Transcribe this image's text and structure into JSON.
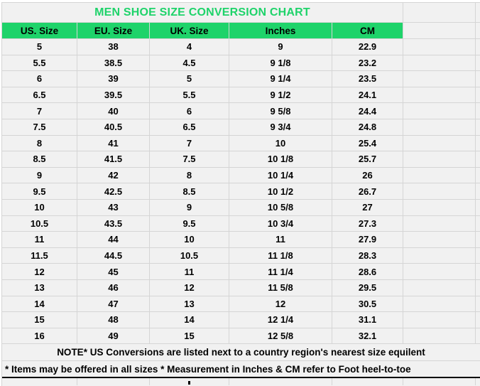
{
  "title": "MEN SHOE SIZE CONVERSION CHART",
  "table": {
    "columns": [
      "US. Size",
      "EU. Size",
      "UK. Size",
      "Inches",
      "CM"
    ],
    "rows": [
      {
        "us": "5",
        "eu": "38",
        "uk": "4",
        "inches": "9",
        "cm": "22.9"
      },
      {
        "us": "5.5",
        "eu": "38.5",
        "uk": "4.5",
        "inches": "9 1/8",
        "cm": "23.2"
      },
      {
        "us": "6",
        "eu": "39",
        "uk": "5",
        "inches": "9 1/4",
        "cm": "23.5"
      },
      {
        "us": "6.5",
        "eu": "39.5",
        "uk": "5.5",
        "inches": "9 1/2",
        "cm": "24.1"
      },
      {
        "us": "7",
        "eu": "40",
        "uk": "6",
        "inches": "9 5/8",
        "cm": "24.4"
      },
      {
        "us": "7.5",
        "eu": "40.5",
        "uk": "6.5",
        "inches": "9 3/4",
        "cm": "24.8"
      },
      {
        "us": "8",
        "eu": "41",
        "uk": "7",
        "inches": "10",
        "cm": "25.4"
      },
      {
        "us": "8.5",
        "eu": "41.5",
        "uk": "7.5",
        "inches": "10 1/8",
        "cm": "25.7"
      },
      {
        "us": "9",
        "eu": "42",
        "uk": "8",
        "inches": "10 1/4",
        "cm": "26"
      },
      {
        "us": "9.5",
        "eu": "42.5",
        "uk": "8.5",
        "inches": "10 1/2",
        "cm": "26.7"
      },
      {
        "us": "10",
        "eu": "43",
        "uk": "9",
        "inches": "10 5/8",
        "cm": "27"
      },
      {
        "us": "10.5",
        "eu": "43.5",
        "uk": "9.5",
        "inches": "10 3/4",
        "cm": "27.3"
      },
      {
        "us": "11",
        "eu": "44",
        "uk": "10",
        "inches": "11",
        "cm": "27.9"
      },
      {
        "us": "11.5",
        "eu": "44.5",
        "uk": "10.5",
        "inches": "11 1/8",
        "cm": "28.3"
      },
      {
        "us": "12",
        "eu": "45",
        "uk": "11",
        "inches": "11 1/4",
        "cm": "28.6"
      },
      {
        "us": "13",
        "eu": "46",
        "uk": "12",
        "inches": "11 5/8",
        "cm": "29.5"
      },
      {
        "us": "14",
        "eu": "47",
        "uk": "13",
        "inches": "12",
        "cm": "30.5"
      },
      {
        "us": "15",
        "eu": "48",
        "uk": "14",
        "inches": "12 1/4",
        "cm": "31.1"
      },
      {
        "us": "16",
        "eu": "49",
        "uk": "15",
        "inches": "12 5/8",
        "cm": "32.1"
      }
    ]
  },
  "notes": {
    "note1": "NOTE* US Conversions are listed next to a country region's nearest size equilent",
    "note2": "* Items may be offered in all sizes * Measurement in Inches & CM refer to Foot heel-to-toe"
  },
  "colors": {
    "accent_green": "#1ed36a",
    "cell_background": "#f1f1f1",
    "grid_border": "#d5d5d5",
    "note_divider": "#000000"
  }
}
